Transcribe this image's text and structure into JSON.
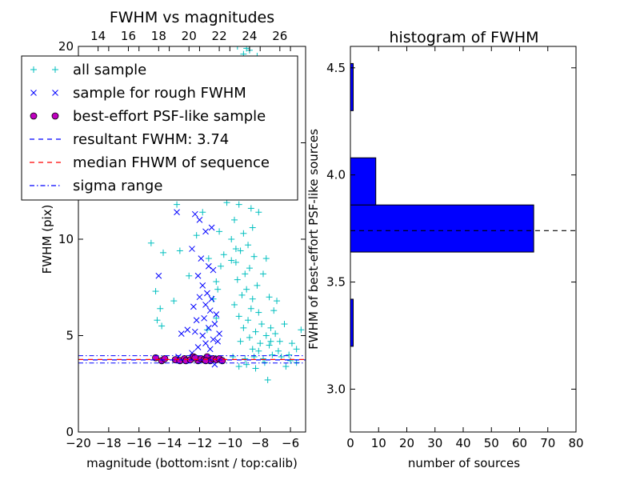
{
  "chart_data": [
    {
      "type": "scatter",
      "title": "FWHM vs magnitudes",
      "xlabel": "magnitude (bottom:isnt / top:calib)",
      "ylabel": "FWHM (pix)",
      "xlim": [
        -20,
        -5
      ],
      "ylim": [
        0,
        20
      ],
      "x_ticks": [
        "−20",
        "−18",
        "−16",
        "−14",
        "−12",
        "−10",
        "−8",
        "−6"
      ],
      "y_ticks": [
        "0",
        "5",
        "10",
        "15",
        "20"
      ],
      "top_axis": {
        "offset": 32.7,
        "ticks": [
          "14",
          "16",
          "18",
          "20",
          "22",
          "24",
          "26"
        ]
      },
      "legend_position": "top-left",
      "legend": [
        {
          "label": "all sample",
          "marker": "+",
          "color": "#00bfbf"
        },
        {
          "label": "sample for rough FWHM",
          "marker": "x",
          "color": "#0000ff"
        },
        {
          "label": "best-effort PSF-like sample",
          "marker": "o",
          "color": "#bf00bf"
        },
        {
          "label": "resultant FWHM: 3.74",
          "linestyle": "dashed",
          "color": "#0000ff"
        },
        {
          "label": "median FHWM of sequence",
          "linestyle": "dashed",
          "color": "#ff0000"
        },
        {
          "label": "sigma range",
          "linestyle": "dashdot",
          "color": "#0000ff"
        }
      ],
      "hlines": {
        "resultant": 3.74,
        "median": 3.76,
        "sigma_low": 3.58,
        "sigma_high": 3.96
      },
      "series": [
        {
          "name": "all sample",
          "marker": "+",
          "color": "#00bfbf",
          "points": [
            [
              -9.5,
              20
            ],
            [
              -8.9,
              19.9
            ],
            [
              -8.7,
              19.8
            ],
            [
              -9.1,
              19.6
            ],
            [
              -8.2,
              19.5
            ],
            [
              -9.6,
              18.5
            ],
            [
              -8.8,
              17.2
            ],
            [
              -9.3,
              16.5
            ],
            [
              -8.4,
              15.8
            ],
            [
              -9.0,
              15.2
            ],
            [
              -8.6,
              14.6
            ],
            [
              -9.8,
              14.0
            ],
            [
              -8.3,
              13.5
            ],
            [
              -9.2,
              13.0
            ],
            [
              -10.1,
              12.6
            ],
            [
              -8.9,
              12.2
            ],
            [
              -9.4,
              11.8
            ],
            [
              -8.1,
              11.4
            ],
            [
              -9.7,
              11.0
            ],
            [
              -8.5,
              10.6
            ],
            [
              -9.1,
              10.3
            ],
            [
              -9.9,
              10.0
            ],
            [
              -8.8,
              9.7
            ],
            [
              -9.3,
              9.4
            ],
            [
              -8.4,
              9.1
            ],
            [
              -9.6,
              8.8
            ],
            [
              -8.7,
              8.5
            ],
            [
              -9.0,
              8.2
            ],
            [
              -9.5,
              7.9
            ],
            [
              -8.2,
              7.6
            ],
            [
              -8.9,
              7.4
            ],
            [
              -9.2,
              7.1
            ],
            [
              -8.5,
              6.9
            ],
            [
              -9.7,
              6.6
            ],
            [
              -8.6,
              6.4
            ],
            [
              -8.1,
              6.2
            ],
            [
              -9.4,
              6.0
            ],
            [
              -8.8,
              5.8
            ],
            [
              -7.9,
              5.6
            ],
            [
              -9.1,
              5.4
            ],
            [
              -8.3,
              5.2
            ],
            [
              -7.6,
              5.0
            ],
            [
              -8.7,
              4.9
            ],
            [
              -9.3,
              4.7
            ],
            [
              -8.0,
              4.6
            ],
            [
              -7.4,
              4.5
            ],
            [
              -8.5,
              4.3
            ],
            [
              -6.8,
              4.2
            ],
            [
              -7.2,
              4.0
            ],
            [
              -6.1,
              4.0
            ],
            [
              -5.6,
              4.3
            ],
            [
              -5.3,
              5.3
            ],
            [
              -6.4,
              5.6
            ],
            [
              -7.0,
              5.1
            ],
            [
              -5.9,
              4.6
            ],
            [
              -6.6,
              3.9
            ],
            [
              -7.8,
              3.8
            ],
            [
              -8.4,
              3.9
            ],
            [
              -9.0,
              3.8
            ],
            [
              -9.8,
              3.9
            ],
            [
              -10.6,
              8.6
            ],
            [
              -10.9,
              7.8
            ],
            [
              -10.4,
              9.2
            ],
            [
              -10.7,
              10.4
            ],
            [
              -10.2,
              11.9
            ],
            [
              -10.5,
              13.0
            ],
            [
              -9.9,
              8.9
            ],
            [
              -9.6,
              9.5
            ],
            [
              -8.6,
              11.6
            ],
            [
              -8.2,
              12.4
            ],
            [
              -7.8,
              8.2
            ],
            [
              -7.4,
              7.0
            ],
            [
              -7.1,
              6.3
            ],
            [
              -6.9,
              6.8
            ],
            [
              -7.6,
              9.0
            ],
            [
              -7.3,
              4.7
            ],
            [
              -8.1,
              4.2
            ],
            [
              -7.7,
              3.6
            ],
            [
              -8.9,
              3.5
            ],
            [
              -9.4,
              3.4
            ],
            [
              -8.3,
              3.3
            ],
            [
              -7.5,
              2.7
            ],
            [
              -6.3,
              3.4
            ],
            [
              -14.5,
              15.7
            ],
            [
              -15.0,
              13.1
            ],
            [
              -14.4,
              9.3
            ],
            [
              -15.2,
              9.8
            ],
            [
              -14.9,
              7.3
            ],
            [
              -14.6,
              6.4
            ],
            [
              -14.8,
              5.8
            ],
            [
              -14.5,
              5.5
            ],
            [
              -13.5,
              11.8
            ],
            [
              -13.3,
              9.4
            ],
            [
              -13.7,
              6.8
            ],
            [
              -12.4,
              12.9
            ],
            [
              -12.2,
              10.2
            ],
            [
              -12.7,
              8.1
            ],
            [
              -11.8,
              11.4
            ],
            [
              -11.4,
              9.0
            ],
            [
              -11.1,
              6.9
            ],
            [
              -10.8,
              7.4
            ],
            [
              -11.5,
              5.3
            ],
            [
              -10.9,
              5.9
            ],
            [
              -12.6,
              16.2
            ],
            [
              -7.3,
              5.4
            ],
            [
              -6.7,
              4.7
            ],
            [
              -6.0,
              3.7
            ],
            [
              -5.6,
              3.6
            ]
          ]
        },
        {
          "name": "sample for rough FWHM",
          "marker": "x",
          "color": "#0000ff",
          "points": [
            [
              -13.5,
              11.4
            ],
            [
              -12.3,
              11.3
            ],
            [
              -12.0,
              11.0
            ],
            [
              -11.6,
              10.4
            ],
            [
              -11.2,
              10.6
            ],
            [
              -12.5,
              9.5
            ],
            [
              -11.9,
              9.0
            ],
            [
              -11.4,
              8.6
            ],
            [
              -11.1,
              8.4
            ],
            [
              -12.1,
              8.1
            ],
            [
              -14.7,
              8.1
            ],
            [
              -11.8,
              7.6
            ],
            [
              -11.5,
              7.2
            ],
            [
              -12.0,
              7.0
            ],
            [
              -11.2,
              6.9
            ],
            [
              -11.6,
              6.6
            ],
            [
              -12.4,
              6.5
            ],
            [
              -11.3,
              6.3
            ],
            [
              -10.9,
              6.1
            ],
            [
              -11.7,
              5.9
            ],
            [
              -12.2,
              5.8
            ],
            [
              -11.0,
              5.6
            ],
            [
              -11.4,
              5.4
            ],
            [
              -12.3,
              5.2
            ],
            [
              -10.7,
              5.1
            ],
            [
              -11.8,
              5.0
            ],
            [
              -12.8,
              5.3
            ],
            [
              -13.2,
              5.1
            ],
            [
              -11.1,
              4.8
            ],
            [
              -11.6,
              4.6
            ],
            [
              -10.8,
              4.7
            ],
            [
              -12.1,
              4.4
            ],
            [
              -11.3,
              4.3
            ],
            [
              -12.5,
              4.1
            ],
            [
              -13.4,
              3.9
            ],
            [
              -11.0,
              3.5
            ]
          ]
        },
        {
          "name": "best-effort PSF-like sample",
          "marker": "o",
          "color": "#bf00bf",
          "points": [
            [
              -14.9,
              3.85
            ],
            [
              -14.5,
              3.7
            ],
            [
              -14.3,
              3.8
            ],
            [
              -13.6,
              3.75
            ],
            [
              -13.3,
              3.7
            ],
            [
              -13.0,
              3.8
            ],
            [
              -12.9,
              3.7
            ],
            [
              -12.6,
              3.75
            ],
            [
              -12.4,
              3.9
            ],
            [
              -12.1,
              3.7
            ],
            [
              -11.9,
              3.8
            ],
            [
              -11.7,
              3.75
            ],
            [
              -11.5,
              3.9
            ],
            [
              -11.3,
              3.7
            ],
            [
              -11.1,
              3.8
            ],
            [
              -10.9,
              3.75
            ],
            [
              -10.7,
              3.8
            ],
            [
              -10.5,
              3.7
            ],
            [
              -12.3,
              3.85
            ],
            [
              -11.6,
              3.7
            ]
          ]
        }
      ]
    },
    {
      "type": "bar",
      "orientation": "horizontal",
      "title": "histogram of FWHM",
      "xlabel": "number of sources",
      "ylabel": "FWHM of best-effort PSF-like sources",
      "xlim": [
        0,
        80
      ],
      "ylim": [
        2.8,
        4.6
      ],
      "x_ticks": [
        "0",
        "10",
        "20",
        "30",
        "40",
        "50",
        "60",
        "70",
        "80"
      ],
      "y_ticks": [
        "3.0",
        "3.5",
        "4.0",
        "4.5"
      ],
      "bar_color": "#0000ff",
      "bins": [
        {
          "start": 3.2,
          "end": 3.42,
          "count": 1
        },
        {
          "start": 3.42,
          "end": 3.64,
          "count": 0
        },
        {
          "start": 3.64,
          "end": 3.86,
          "count": 65
        },
        {
          "start": 3.86,
          "end": 4.08,
          "count": 9
        },
        {
          "start": 4.08,
          "end": 4.3,
          "count": 0
        },
        {
          "start": 4.3,
          "end": 4.52,
          "count": 1
        }
      ],
      "hline": 3.74
    }
  ]
}
